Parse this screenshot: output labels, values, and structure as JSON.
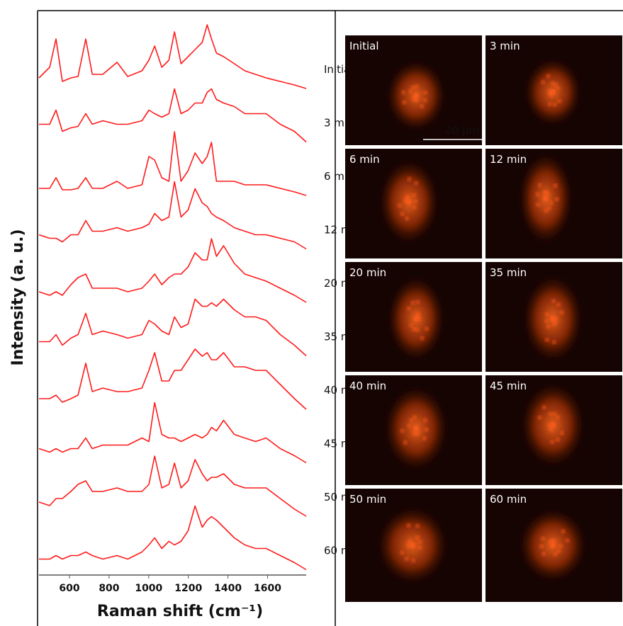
{
  "chart_data": {
    "type": "line",
    "x_label": "Raman shift (cm⁻¹)",
    "y_label": "Intensity (a. u.)",
    "x": [
      446,
      500,
      532,
      564,
      607,
      643,
      682,
      715,
      768,
      840,
      894,
      966,
      1001,
      1030,
      1066,
      1102,
      1130,
      1163,
      1199,
      1234,
      1270,
      1295,
      1317,
      1342,
      1378,
      1432,
      1485,
      1539,
      1593,
      1664,
      1736,
      1795
    ],
    "xlim": [
      446,
      1795
    ],
    "xticks": [
      600,
      800,
      1000,
      1200,
      1400,
      1600
    ],
    "series": [
      {
        "name": "Initial",
        "color": "#ff1a1a",
        "values": [
          15,
          30,
          70,
          10,
          15,
          17,
          70,
          20,
          20,
          37,
          17,
          25,
          40,
          60,
          30,
          40,
          80,
          35,
          45,
          55,
          65,
          90,
          70,
          50,
          45,
          35,
          25,
          20,
          15,
          10,
          5,
          0
        ]
      },
      {
        "name": "3 min",
        "color": "#ff1a1a",
        "values": [
          25,
          25,
          45,
          15,
          20,
          22,
          40,
          25,
          30,
          25,
          25,
          30,
          45,
          40,
          35,
          40,
          75,
          40,
          45,
          55,
          55,
          70,
          75,
          60,
          55,
          50,
          40,
          40,
          40,
          25,
          15,
          0
        ]
      },
      {
        "name": "6 min",
        "color": "#ff1a1a",
        "values": [
          10,
          10,
          25,
          8,
          8,
          10,
          25,
          10,
          10,
          20,
          10,
          15,
          55,
          50,
          25,
          20,
          90,
          20,
          35,
          60,
          45,
          55,
          75,
          20,
          20,
          20,
          15,
          15,
          15,
          10,
          5,
          0
        ]
      },
      {
        "name": "12 min",
        "color": "#ff1a1a",
        "values": [
          20,
          15,
          15,
          10,
          20,
          20,
          40,
          25,
          25,
          30,
          25,
          30,
          35,
          50,
          40,
          45,
          95,
          45,
          55,
          85,
          65,
          60,
          50,
          45,
          40,
          30,
          25,
          20,
          20,
          15,
          10,
          0
        ]
      },
      {
        "name": "20 min",
        "color": "#ff1a1a",
        "values": [
          15,
          10,
          15,
          10,
          25,
          35,
          40,
          20,
          20,
          20,
          15,
          20,
          30,
          40,
          25,
          35,
          40,
          40,
          50,
          70,
          60,
          60,
          90,
          65,
          80,
          55,
          40,
          35,
          30,
          20,
          10,
          0
        ]
      },
      {
        "name": "35 min",
        "color": "#ff1a1a",
        "values": [
          20,
          20,
          30,
          15,
          25,
          30,
          60,
          30,
          35,
          30,
          25,
          30,
          50,
          45,
          35,
          30,
          55,
          40,
          45,
          80,
          70,
          70,
          75,
          70,
          80,
          65,
          55,
          55,
          50,
          30,
          15,
          0
        ]
      },
      {
        "name": "40 min",
        "color": "#ff1a1a",
        "values": [
          15,
          15,
          20,
          10,
          15,
          20,
          65,
          25,
          30,
          25,
          25,
          30,
          55,
          80,
          40,
          40,
          55,
          55,
          70,
          85,
          75,
          80,
          70,
          70,
          80,
          60,
          60,
          55,
          55,
          35,
          15,
          0
        ]
      },
      {
        "name": "45 min",
        "color": "#ff1a1a",
        "values": [
          20,
          15,
          20,
          15,
          20,
          20,
          35,
          20,
          25,
          25,
          25,
          35,
          30,
          85,
          40,
          35,
          35,
          30,
          35,
          40,
          35,
          40,
          50,
          45,
          60,
          40,
          35,
          30,
          35,
          20,
          10,
          0
        ]
      },
      {
        "name": "50 min",
        "color": "#ff1a1a",
        "values": [
          20,
          15,
          25,
          25,
          35,
          45,
          50,
          35,
          35,
          40,
          35,
          35,
          45,
          85,
          40,
          45,
          75,
          40,
          50,
          80,
          60,
          50,
          55,
          55,
          60,
          45,
          40,
          40,
          40,
          25,
          10,
          0
        ]
      },
      {
        "name": "60 min",
        "color": "#ff1a1a",
        "values": [
          15,
          15,
          20,
          15,
          20,
          20,
          25,
          20,
          15,
          20,
          15,
          25,
          35,
          45,
          30,
          40,
          35,
          40,
          55,
          90,
          60,
          70,
          75,
          70,
          60,
          45,
          35,
          30,
          30,
          20,
          10,
          0
        ]
      }
    ]
  },
  "images": {
    "scale_bar": "20 µm",
    "panels": [
      {
        "label": "Initial"
      },
      {
        "label": "3 min"
      },
      {
        "label": "6 min"
      },
      {
        "label": "12 min"
      },
      {
        "label": "20 min"
      },
      {
        "label": "35 min"
      },
      {
        "label": "40 min"
      },
      {
        "label": "45 min"
      },
      {
        "label": "50 min"
      },
      {
        "label": "60 min"
      }
    ]
  }
}
